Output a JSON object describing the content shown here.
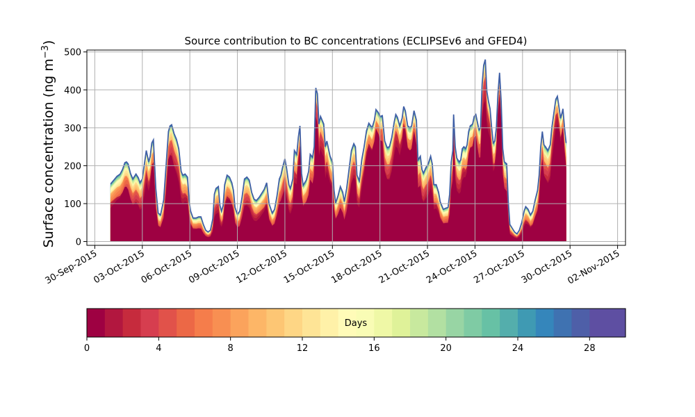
{
  "chart_data": {
    "type": "area",
    "title": "Source contribution to BC concentrations (ECLIPSEv6 and GFED4)",
    "ylabel_main": "Surface concentration (ng m",
    "ylabel_sup": "−3",
    "ylabel_close": ")",
    "xlabel": "",
    "ylim": [
      -10,
      505
    ],
    "yticks": [
      0,
      100,
      200,
      300,
      400,
      500
    ],
    "xlim": [
      -0.5,
      33.5
    ],
    "grid": true,
    "xticks": [
      {
        "x": 0,
        "label": "30-Sep-2015"
      },
      {
        "x": 3,
        "label": "03-Oct-2015"
      },
      {
        "x": 6,
        "label": "06-Oct-2015"
      },
      {
        "x": 9,
        "label": "09-Oct-2015"
      },
      {
        "x": 12,
        "label": "12-Oct-2015"
      },
      {
        "x": 15,
        "label": "15-Oct-2015"
      },
      {
        "x": 18,
        "label": "18-Oct-2015"
      },
      {
        "x": 21,
        "label": "21-Oct-2015"
      },
      {
        "x": 24,
        "label": "24-Oct-2015"
      },
      {
        "x": 27,
        "label": "27-Oct-2015"
      },
      {
        "x": 30,
        "label": "30-Oct-2015"
      },
      {
        "x": 33,
        "label": "02-Nov-2015"
      }
    ],
    "x_units": "days since 30-Sep-2015",
    "total": [
      [
        1.0,
        152
      ],
      [
        1.2,
        162
      ],
      [
        1.4,
        172
      ],
      [
        1.6,
        178
      ],
      [
        1.75,
        190
      ],
      [
        1.9,
        208
      ],
      [
        2.0,
        210
      ],
      [
        2.1,
        205
      ],
      [
        2.25,
        180
      ],
      [
        2.4,
        165
      ],
      [
        2.6,
        178
      ],
      [
        2.75,
        168
      ],
      [
        2.85,
        155
      ],
      [
        3.0,
        165
      ],
      [
        3.15,
        210
      ],
      [
        3.25,
        240
      ],
      [
        3.4,
        210
      ],
      [
        3.5,
        225
      ],
      [
        3.6,
        260
      ],
      [
        3.7,
        268
      ],
      [
        3.85,
        140
      ],
      [
        4.0,
        75
      ],
      [
        4.15,
        70
      ],
      [
        4.35,
        110
      ],
      [
        4.5,
        200
      ],
      [
        4.65,
        290
      ],
      [
        4.75,
        305
      ],
      [
        4.85,
        308
      ],
      [
        5.0,
        285
      ],
      [
        5.15,
        270
      ],
      [
        5.3,
        245
      ],
      [
        5.45,
        185
      ],
      [
        5.55,
        175
      ],
      [
        5.7,
        178
      ],
      [
        5.85,
        170
      ],
      [
        5.95,
        110
      ],
      [
        6.05,
        80
      ],
      [
        6.2,
        62
      ],
      [
        6.4,
        62
      ],
      [
        6.55,
        65
      ],
      [
        6.7,
        65
      ],
      [
        6.85,
        45
      ],
      [
        7.0,
        30
      ],
      [
        7.15,
        25
      ],
      [
        7.3,
        30
      ],
      [
        7.45,
        60
      ],
      [
        7.55,
        125
      ],
      [
        7.65,
        140
      ],
      [
        7.8,
        145
      ],
      [
        7.9,
        95
      ],
      [
        8.0,
        80
      ],
      [
        8.1,
        95
      ],
      [
        8.2,
        150
      ],
      [
        8.35,
        175
      ],
      [
        8.5,
        170
      ],
      [
        8.65,
        155
      ],
      [
        8.75,
        135
      ],
      [
        8.85,
        90
      ],
      [
        9.0,
        72
      ],
      [
        9.15,
        80
      ],
      [
        9.3,
        118
      ],
      [
        9.45,
        165
      ],
      [
        9.6,
        170
      ],
      [
        9.75,
        162
      ],
      [
        9.9,
        130
      ],
      [
        10.05,
        112
      ],
      [
        10.2,
        108
      ],
      [
        10.4,
        118
      ],
      [
        10.55,
        128
      ],
      [
        10.7,
        138
      ],
      [
        10.85,
        155
      ],
      [
        11.0,
        100
      ],
      [
        11.2,
        75
      ],
      [
        11.35,
        85
      ],
      [
        11.5,
        120
      ],
      [
        11.65,
        165
      ],
      [
        11.75,
        175
      ],
      [
        11.85,
        195
      ],
      [
        12.0,
        218
      ],
      [
        12.1,
        195
      ],
      [
        12.25,
        150
      ],
      [
        12.35,
        140
      ],
      [
        12.5,
        165
      ],
      [
        12.6,
        240
      ],
      [
        12.75,
        230
      ],
      [
        12.85,
        275
      ],
      [
        12.95,
        305
      ],
      [
        13.05,
        180
      ],
      [
        13.15,
        148
      ],
      [
        13.35,
        162
      ],
      [
        13.5,
        185
      ],
      [
        13.6,
        230
      ],
      [
        13.75,
        222
      ],
      [
        13.85,
        250
      ],
      [
        13.95,
        405
      ],
      [
        14.05,
        390
      ],
      [
        14.15,
        310
      ],
      [
        14.25,
        330
      ],
      [
        14.35,
        320
      ],
      [
        14.45,
        310
      ],
      [
        14.55,
        250
      ],
      [
        14.65,
        265
      ],
      [
        14.75,
        245
      ],
      [
        14.85,
        225
      ],
      [
        15.0,
        210
      ],
      [
        15.1,
        135
      ],
      [
        15.2,
        102
      ],
      [
        15.35,
        120
      ],
      [
        15.5,
        145
      ],
      [
        15.65,
        130
      ],
      [
        15.75,
        105
      ],
      [
        15.9,
        140
      ],
      [
        16.05,
        190
      ],
      [
        16.2,
        240
      ],
      [
        16.35,
        258
      ],
      [
        16.45,
        250
      ],
      [
        16.55,
        175
      ],
      [
        16.7,
        160
      ],
      [
        16.85,
        215
      ],
      [
        17.0,
        250
      ],
      [
        17.15,
        292
      ],
      [
        17.3,
        312
      ],
      [
        17.5,
        300
      ],
      [
        17.65,
        320
      ],
      [
        17.75,
        348
      ],
      [
        17.9,
        340
      ],
      [
        18.0,
        330
      ],
      [
        18.15,
        332
      ],
      [
        18.3,
        265
      ],
      [
        18.45,
        248
      ],
      [
        18.6,
        250
      ],
      [
        18.75,
        275
      ],
      [
        18.9,
        315
      ],
      [
        19.0,
        335
      ],
      [
        19.1,
        328
      ],
      [
        19.25,
        305
      ],
      [
        19.4,
        325
      ],
      [
        19.5,
        356
      ],
      [
        19.6,
        345
      ],
      [
        19.75,
        305
      ],
      [
        19.9,
        300
      ],
      [
        20.0,
        305
      ],
      [
        20.15,
        345
      ],
      [
        20.3,
        320
      ],
      [
        20.4,
        215
      ],
      [
        20.55,
        225
      ],
      [
        20.65,
        190
      ],
      [
        20.75,
        180
      ],
      [
        20.9,
        195
      ],
      [
        21.05,
        205
      ],
      [
        21.2,
        225
      ],
      [
        21.3,
        205
      ],
      [
        21.4,
        150
      ],
      [
        21.55,
        150
      ],
      [
        21.7,
        130
      ],
      [
        21.8,
        105
      ],
      [
        21.9,
        95
      ],
      [
        22.0,
        85
      ],
      [
        22.15,
        88
      ],
      [
        22.3,
        90
      ],
      [
        22.4,
        125
      ],
      [
        22.5,
        210
      ],
      [
        22.6,
        240
      ],
      [
        22.65,
        335
      ],
      [
        22.75,
        250
      ],
      [
        22.85,
        220
      ],
      [
        23.0,
        210
      ],
      [
        23.1,
        215
      ],
      [
        23.2,
        245
      ],
      [
        23.3,
        250
      ],
      [
        23.4,
        245
      ],
      [
        23.5,
        255
      ],
      [
        23.6,
        290
      ],
      [
        23.7,
        305
      ],
      [
        23.85,
        310
      ],
      [
        23.95,
        330
      ],
      [
        24.05,
        335
      ],
      [
        24.15,
        315
      ],
      [
        24.25,
        295
      ],
      [
        24.35,
        300
      ],
      [
        24.45,
        415
      ],
      [
        24.55,
        465
      ],
      [
        24.65,
        480
      ],
      [
        24.75,
        395
      ],
      [
        24.85,
        370
      ],
      [
        24.95,
        350
      ],
      [
        25.05,
        300
      ],
      [
        25.15,
        260
      ],
      [
        25.25,
        265
      ],
      [
        25.35,
        300
      ],
      [
        25.45,
        390
      ],
      [
        25.55,
        445
      ],
      [
        25.65,
        370
      ],
      [
        25.75,
        245
      ],
      [
        25.85,
        210
      ],
      [
        26.0,
        205
      ],
      [
        26.1,
        105
      ],
      [
        26.2,
        45
      ],
      [
        26.35,
        35
      ],
      [
        26.5,
        25
      ],
      [
        26.65,
        20
      ],
      [
        26.8,
        30
      ],
      [
        26.95,
        50
      ],
      [
        27.1,
        80
      ],
      [
        27.2,
        92
      ],
      [
        27.35,
        85
      ],
      [
        27.5,
        70
      ],
      [
        27.65,
        80
      ],
      [
        27.8,
        110
      ],
      [
        27.95,
        135
      ],
      [
        28.05,
        175
      ],
      [
        28.15,
        250
      ],
      [
        28.25,
        290
      ],
      [
        28.35,
        255
      ],
      [
        28.45,
        250
      ],
      [
        28.6,
        240
      ],
      [
        28.75,
        255
      ],
      [
        28.85,
        300
      ],
      [
        29.0,
        345
      ],
      [
        29.1,
        375
      ],
      [
        29.2,
        383
      ],
      [
        29.3,
        355
      ],
      [
        29.4,
        325
      ],
      [
        29.5,
        340
      ],
      [
        29.55,
        350
      ],
      [
        29.65,
        300
      ],
      [
        29.75,
        260
      ]
    ],
    "colorbar": {
      "label": "Days",
      "min": 0,
      "max": 30,
      "ticks": [
        0,
        4,
        8,
        12,
        16,
        20,
        24,
        28
      ],
      "colors": [
        "#9e0142",
        "#b2173f",
        "#c62b3d",
        "#d63e4f",
        "#e1524a",
        "#ec6846",
        "#f57d4b",
        "#f88f52",
        "#fba35c",
        "#fdb667",
        "#fdc674",
        "#fed685",
        "#fee496",
        "#fff1a8",
        "#fffbb8",
        "#f9fcb5",
        "#eff8a6",
        "#dff299",
        "#c8e99e",
        "#b2e0a2",
        "#98d5a4",
        "#7fcba4",
        "#67c1a5",
        "#54aeac",
        "#3f9ab3",
        "#3586bb",
        "#3f72b1",
        "#4e5fa8",
        "#5e4fa2",
        "#5e4fa2"
      ]
    }
  }
}
